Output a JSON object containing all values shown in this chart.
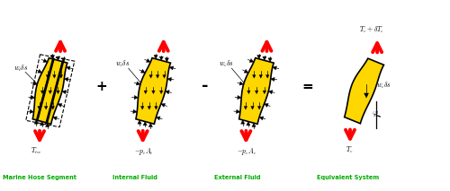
{
  "bg_color": "#ffffff",
  "gold_color": "#FFD700",
  "black_color": "#000000",
  "red_color": "#FF0000",
  "green_color": "#00AA00",
  "labels": {
    "seg1_top": "$w_t\\delta s$",
    "seg1_bot": "$T_{tw}$",
    "seg1_caption": "Marine Hose Segment",
    "seg2_top": "$w_i\\delta s$",
    "seg2_bot": "$- p_iA_i$",
    "seg2_caption": "Internal Fluid",
    "seg3_top": "$w_e\\delta s$",
    "seg3_bot": "$- p_eA_e$",
    "seg3_caption": "External Fluid",
    "seg4_top": "$T_e + \\delta T_e$",
    "seg4_right": "$w_e\\delta s$",
    "seg4_bot": "$T_e$",
    "seg4_angle": "$\\varphi$",
    "seg4_caption": "Equivalent System"
  },
  "operators": [
    "+",
    "-",
    "="
  ],
  "figure_width": 5.0,
  "figure_height": 2.13
}
